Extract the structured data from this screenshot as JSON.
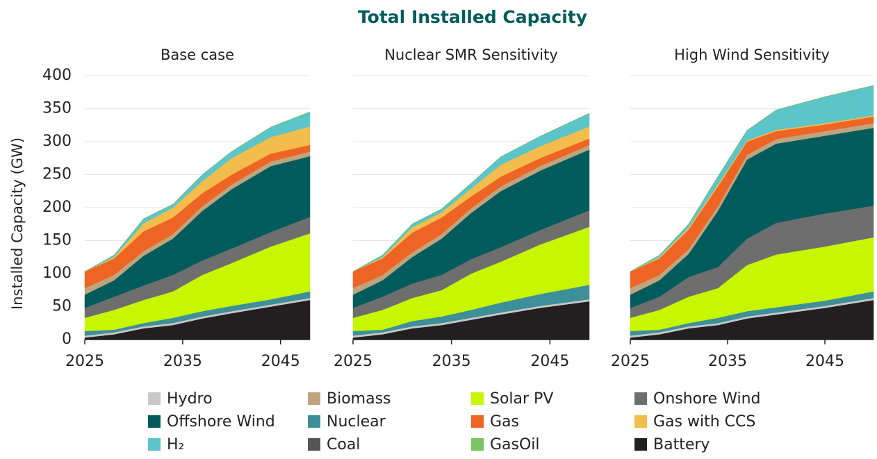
{
  "title": "Total Installed Capacity",
  "ylabel": "Installed Capacity (GW)",
  "legend": [
    {
      "name": "Hydro",
      "color": "#c8c8c8"
    },
    {
      "name": "Biomass",
      "color": "#c0a47e"
    },
    {
      "name": "Solar PV",
      "color": "#c6f700"
    },
    {
      "name": "Onshore Wind",
      "color": "#6e6e6e"
    },
    {
      "name": "Offshore Wind",
      "color": "#005c5c"
    },
    {
      "name": "Nuclear",
      "color": "#3d8f99"
    },
    {
      "name": "Gas",
      "color": "#ee6424"
    },
    {
      "name": "Gas with CCS",
      "color": "#f2bd4c"
    },
    {
      "name": "H₂",
      "color": "#5cc5c9"
    },
    {
      "name": "Coal",
      "color": "#555555"
    },
    {
      "name": "GasOil",
      "color": "#7ac461"
    },
    {
      "name": "Battery",
      "color": "#231f20"
    }
  ],
  "chart_data": [
    {
      "type": "area",
      "title": "Base case",
      "x": [
        2025,
        2028,
        2031,
        2034,
        2037,
        2040,
        2044,
        2048
      ],
      "xlim": [
        2025,
        2048
      ],
      "xticks": [
        2025,
        2035,
        2045
      ],
      "ylim": [
        0,
        400
      ],
      "yticks": [
        0,
        50,
        100,
        150,
        200,
        250,
        300,
        350,
        400
      ],
      "series": [
        {
          "values": [
            3,
            3,
            3,
            3,
            3,
            3,
            3,
            3
          ]
        },
        {
          "values": [
            10,
            8,
            7,
            7,
            7,
            7,
            7,
            7
          ]
        },
        {
          "values": [
            20,
            30,
            35,
            40,
            55,
            65,
            80,
            88
          ]
        },
        {
          "values": [
            15,
            20,
            22,
            25,
            22,
            22,
            22,
            25
          ]
        },
        {
          "values": [
            20,
            25,
            45,
            55,
            75,
            90,
            100,
            92
          ]
        },
        {
          "values": [
            7,
            4,
            5,
            8,
            8,
            8,
            8,
            10
          ]
        },
        {
          "values": [
            25,
            25,
            30,
            25,
            20,
            15,
            12,
            10
          ]
        },
        {
          "values": [
            0,
            2,
            12,
            15,
            18,
            25,
            25,
            28
          ]
        },
        {
          "values": [
            0,
            3,
            7,
            5,
            10,
            10,
            15,
            22
          ]
        },
        {
          "values": [
            0,
            0,
            0,
            0,
            0,
            0,
            0,
            0
          ]
        },
        {
          "values": [
            0,
            0,
            0,
            0,
            0,
            0,
            0,
            0
          ]
        },
        {
          "values": [
            3,
            8,
            17,
            22,
            32,
            40,
            50,
            60
          ]
        }
      ]
    },
    {
      "type": "area",
      "title": "Nuclear SMR Sensitivity",
      "x": [
        2025,
        2028,
        2031,
        2034,
        2037,
        2040,
        2044,
        2049
      ],
      "xlim": [
        2025,
        2049
      ],
      "xticks": [
        2025,
        2035,
        2045
      ],
      "ylim": [
        0,
        400
      ],
      "yticks": [
        0,
        50,
        100,
        150,
        200,
        250,
        300,
        350,
        400
      ],
      "series": [
        {
          "values": [
            3,
            3,
            3,
            3,
            3,
            3,
            3,
            3
          ]
        },
        {
          "values": [
            10,
            8,
            7,
            7,
            7,
            7,
            7,
            7
          ]
        },
        {
          "values": [
            20,
            30,
            35,
            40,
            55,
            62,
            75,
            88
          ]
        },
        {
          "values": [
            15,
            20,
            22,
            23,
            22,
            22,
            22,
            25
          ]
        },
        {
          "values": [
            20,
            25,
            40,
            55,
            70,
            85,
            90,
            92
          ]
        },
        {
          "values": [
            7,
            4,
            8,
            10,
            12,
            15,
            18,
            22
          ]
        },
        {
          "values": [
            25,
            25,
            30,
            25,
            18,
            15,
            12,
            10
          ]
        },
        {
          "values": [
            0,
            2,
            8,
            8,
            12,
            18,
            18,
            18
          ]
        },
        {
          "values": [
            0,
            3,
            5,
            5,
            8,
            12,
            15,
            20
          ]
        },
        {
          "values": [
            0,
            0,
            0,
            0,
            0,
            0,
            0,
            0
          ]
        },
        {
          "values": [
            0,
            0,
            0,
            0,
            0,
            0,
            0,
            0
          ]
        },
        {
          "values": [
            3,
            8,
            17,
            22,
            30,
            38,
            48,
            58
          ]
        }
      ]
    },
    {
      "type": "area",
      "title": "High Wind Sensitivity",
      "x": [
        2025,
        2028,
        2031,
        2034,
        2037,
        2040,
        2045,
        2050
      ],
      "xlim": [
        2025,
        2050
      ],
      "xticks": [
        2025,
        2035,
        2045
      ],
      "ylim": [
        0,
        400
      ],
      "yticks": [
        0,
        50,
        100,
        150,
        200,
        250,
        300,
        350,
        400
      ],
      "series": [
        {
          "values": [
            3,
            3,
            3,
            3,
            3,
            3,
            3,
            3
          ]
        },
        {
          "values": [
            10,
            8,
            7,
            7,
            7,
            7,
            7,
            7
          ]
        },
        {
          "values": [
            20,
            30,
            40,
            45,
            70,
            80,
            82,
            82
          ]
        },
        {
          "values": [
            15,
            20,
            30,
            32,
            40,
            48,
            50,
            48
          ]
        },
        {
          "values": [
            20,
            25,
            35,
            85,
            120,
            120,
            118,
            118
          ]
        },
        {
          "values": [
            7,
            4,
            5,
            8,
            8,
            8,
            8,
            10
          ]
        },
        {
          "values": [
            25,
            25,
            30,
            30,
            20,
            12,
            10,
            10
          ]
        },
        {
          "values": [
            0,
            2,
            3,
            3,
            2,
            2,
            2,
            2
          ]
        },
        {
          "values": [
            0,
            3,
            5,
            12,
            15,
            30,
            40,
            45
          ]
        },
        {
          "values": [
            0,
            0,
            0,
            0,
            0,
            0,
            0,
            0
          ]
        },
        {
          "values": [
            0,
            0,
            0,
            0,
            0,
            0,
            0,
            0
          ]
        },
        {
          "values": [
            3,
            8,
            17,
            22,
            32,
            38,
            48,
            60
          ]
        }
      ]
    }
  ]
}
